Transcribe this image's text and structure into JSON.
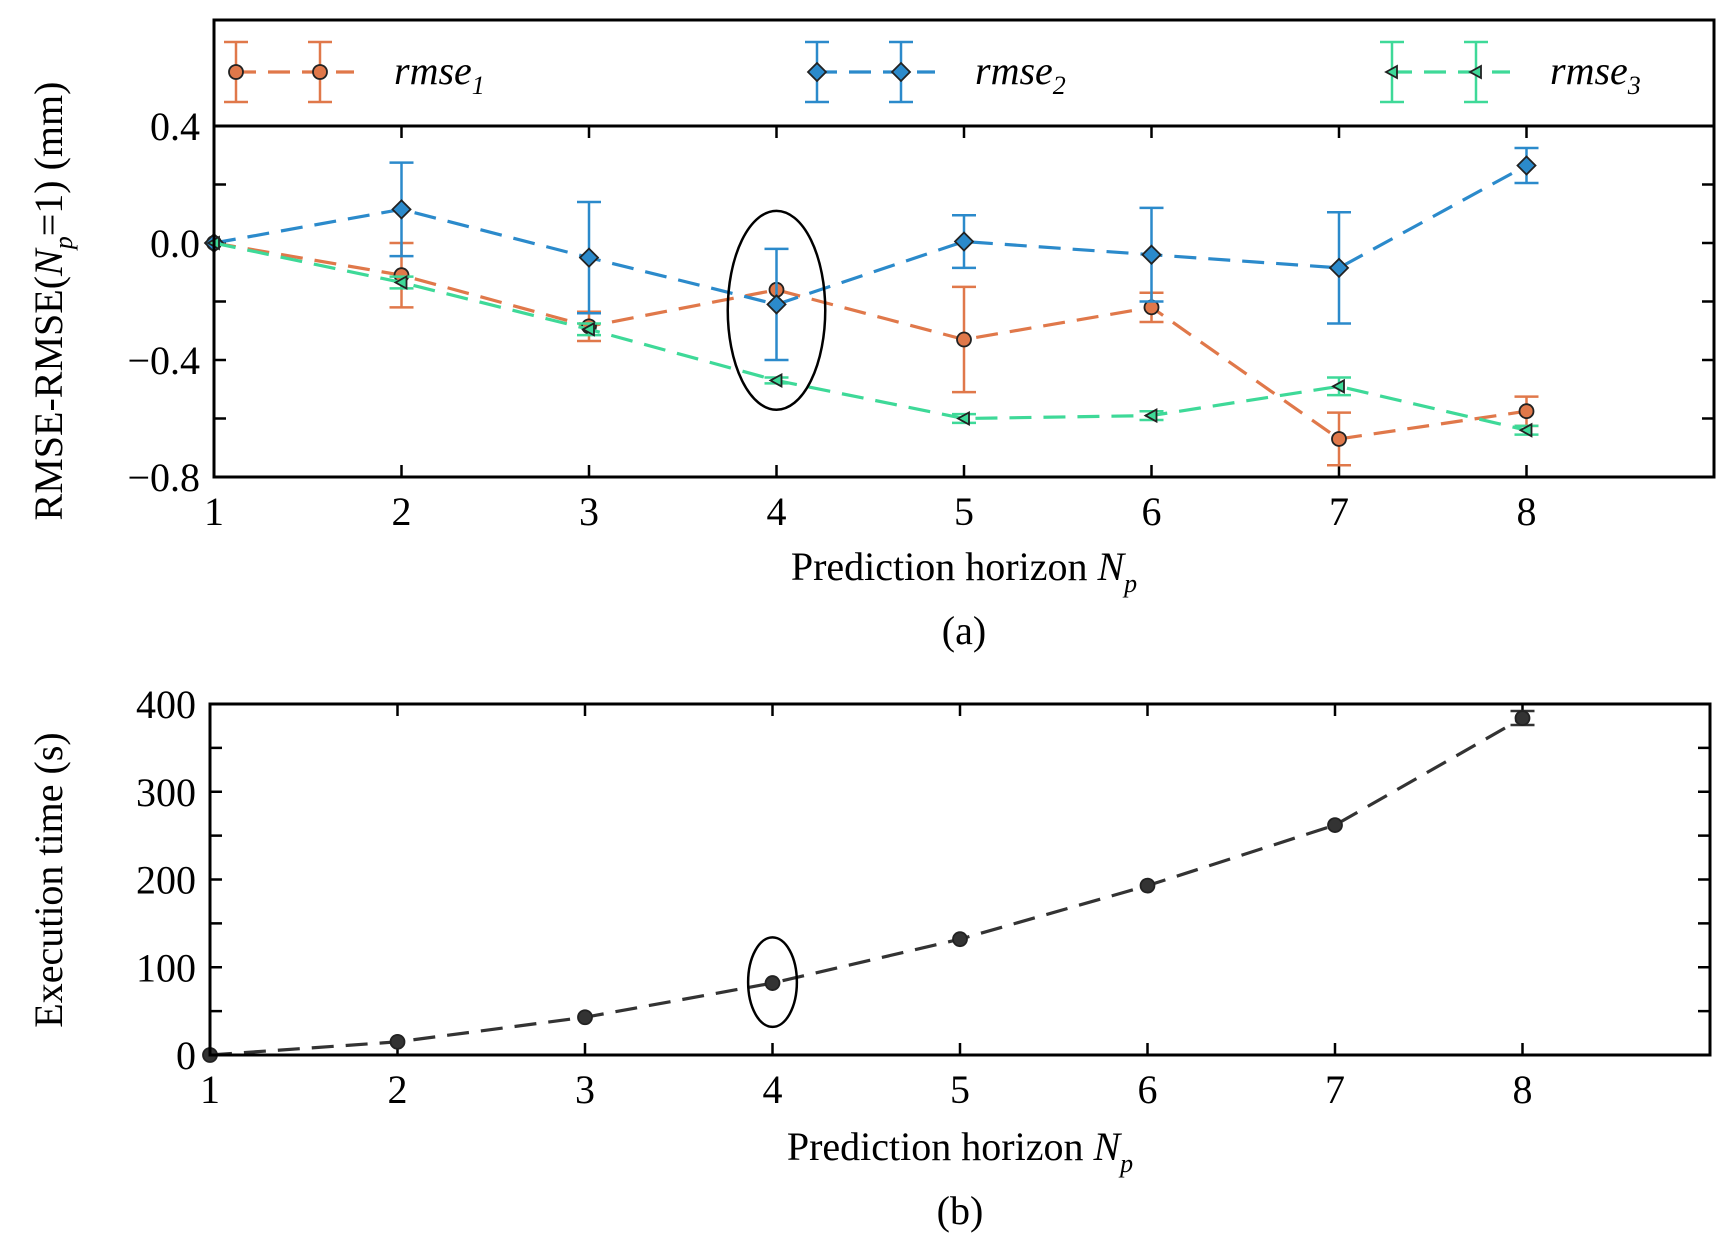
{
  "chart_data": [
    {
      "type": "line",
      "panel": "(a)",
      "caption": "(a)",
      "ylabel_parts": [
        "RMSE-RMSE(",
        "N",
        "p",
        "=1) (mm)"
      ],
      "xlabel_parts": [
        "Prediction horizon ",
        "N",
        "p"
      ],
      "xlim": [
        1,
        9
      ],
      "ylim": [
        -0.8,
        0.4
      ],
      "xticks": [
        1,
        2,
        3,
        4,
        5,
        6,
        7,
        8
      ],
      "xtick_labels": [
        "1",
        "2",
        "3",
        "4",
        "5",
        "6",
        "7",
        "8"
      ],
      "yticks": [
        -0.8,
        -0.4,
        0.0,
        0.4
      ],
      "ytick_labels": [
        "−0.8",
        "−0.4",
        "0.0",
        "0.4"
      ],
      "minor_yticks": [
        -0.6,
        -0.2,
        0.2
      ],
      "highlight": {
        "x": 4,
        "y": -0.23,
        "rx": 0.26,
        "ry": 0.34
      },
      "legend": {
        "placement": "top, outside",
        "entries": [
          {
            "base": "rmse",
            "sub": "1"
          },
          {
            "base": "rmse",
            "sub": "2"
          },
          {
            "base": "rmse",
            "sub": "3"
          }
        ]
      },
      "series": [
        {
          "marker": "circle",
          "color": "#e0784a",
          "x": [
            1,
            2,
            3,
            4,
            5,
            6,
            7,
            8
          ],
          "y": [
            0.0,
            -0.11,
            -0.285,
            -0.16,
            -0.33,
            -0.22,
            -0.67,
            -0.575
          ],
          "err": [
            0.0,
            0.11,
            0.05,
            0.0,
            0.18,
            0.05,
            0.09,
            0.05
          ]
        },
        {
          "marker": "diamond",
          "color": "#2b8acb",
          "x": [
            1,
            2,
            3,
            4,
            5,
            6,
            7,
            8
          ],
          "y": [
            0.0,
            0.115,
            -0.05,
            -0.21,
            0.005,
            -0.04,
            -0.085,
            0.265
          ],
          "err": [
            0.0,
            0.16,
            0.19,
            0.19,
            0.09,
            0.16,
            0.19,
            0.06
          ]
        },
        {
          "marker": "triangle-left",
          "color": "#3ed998",
          "x": [
            1,
            2,
            3,
            4,
            5,
            6,
            7,
            8
          ],
          "y": [
            0.0,
            -0.135,
            -0.295,
            -0.47,
            -0.6,
            -0.59,
            -0.49,
            -0.64
          ],
          "err": [
            0.0,
            0.02,
            0.02,
            0.01,
            0.015,
            0.015,
            0.03,
            0.015
          ]
        }
      ]
    },
    {
      "type": "line",
      "panel": "(b)",
      "caption": "(b)",
      "ylabel": "Execution time (s)",
      "xlabel_parts": [
        "Prediction horizon ",
        "N",
        "p"
      ],
      "xlim": [
        1,
        9
      ],
      "ylim": [
        0,
        400
      ],
      "xticks": [
        1,
        2,
        3,
        4,
        5,
        6,
        7,
        8
      ],
      "xtick_labels": [
        "1",
        "2",
        "3",
        "4",
        "5",
        "6",
        "7",
        "8"
      ],
      "yticks": [
        0,
        100,
        200,
        300,
        400
      ],
      "ytick_labels": [
        "0",
        "100",
        "200",
        "300",
        "400"
      ],
      "minor_yticks": [
        50,
        150,
        250,
        350
      ],
      "highlight": {
        "x": 4,
        "y": 83,
        "rx": 0.13,
        "ry": 51
      },
      "series": [
        {
          "marker": "circle",
          "color": "#333333",
          "x": [
            1,
            2,
            3,
            4,
            5,
            6,
            7,
            8
          ],
          "y": [
            0,
            15,
            43,
            82,
            132,
            193,
            262,
            384
          ],
          "err": [
            0,
            0,
            0,
            0,
            0,
            0,
            0,
            8
          ]
        }
      ]
    }
  ]
}
